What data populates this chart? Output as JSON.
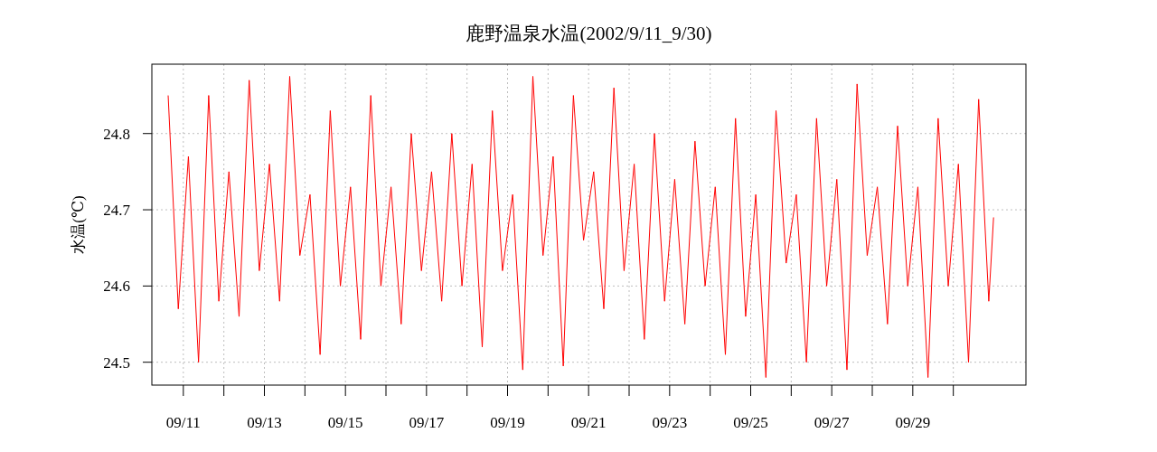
{
  "chart_data": {
    "type": "line",
    "title": "鹿野温泉水温(2002/9/11_9/30)",
    "ylabel": "水温(℃)",
    "color": "#ff0000",
    "grid": true,
    "xlim": [
      "2002-09-10T05:21",
      "2002-10-01T19:00"
    ],
    "ylim": [
      24.47,
      24.891
    ],
    "yticks": [
      24.5,
      24.6,
      24.7,
      24.8
    ],
    "xticks": [
      {
        "value": "2002-09-11",
        "label": "09/11"
      },
      {
        "value": "2002-09-12",
        "label": null
      },
      {
        "value": "2002-09-13",
        "label": "09/13"
      },
      {
        "value": "2002-09-14",
        "label": null
      },
      {
        "value": "2002-09-15",
        "label": "09/15"
      },
      {
        "value": "2002-09-16",
        "label": null
      },
      {
        "value": "2002-09-17",
        "label": "09/17"
      },
      {
        "value": "2002-09-18",
        "label": null
      },
      {
        "value": "2002-09-19",
        "label": "09/19"
      },
      {
        "value": "2002-09-20",
        "label": null
      },
      {
        "value": "2002-09-21",
        "label": "09/21"
      },
      {
        "value": "2002-09-22",
        "label": null
      },
      {
        "value": "2002-09-23",
        "label": "09/23"
      },
      {
        "value": "2002-09-24",
        "label": null
      },
      {
        "value": "2002-09-25",
        "label": "09/25"
      },
      {
        "value": "2002-09-26",
        "label": null
      },
      {
        "value": "2002-09-27",
        "label": "09/27"
      },
      {
        "value": "2002-09-28",
        "label": null
      },
      {
        "value": "2002-09-29",
        "label": "09/29"
      },
      {
        "value": "2002-09-30",
        "label": null
      }
    ],
    "x": [
      "2002-09-10T15:00",
      "2002-09-10T21:00",
      "2002-09-11T03:00",
      "2002-09-11T09:00",
      "2002-09-11T15:00",
      "2002-09-11T21:00",
      "2002-09-12T03:00",
      "2002-09-12T09:00",
      "2002-09-12T15:00",
      "2002-09-12T21:00",
      "2002-09-13T03:00",
      "2002-09-13T09:00",
      "2002-09-13T15:00",
      "2002-09-13T21:00",
      "2002-09-14T03:00",
      "2002-09-14T09:00",
      "2002-09-14T15:00",
      "2002-09-14T21:00",
      "2002-09-15T03:00",
      "2002-09-15T09:00",
      "2002-09-15T15:00",
      "2002-09-15T21:00",
      "2002-09-16T03:00",
      "2002-09-16T09:00",
      "2002-09-16T15:00",
      "2002-09-16T21:00",
      "2002-09-17T03:00",
      "2002-09-17T09:00",
      "2002-09-17T15:00",
      "2002-09-17T21:00",
      "2002-09-18T03:00",
      "2002-09-18T09:00",
      "2002-09-18T15:00",
      "2002-09-18T21:00",
      "2002-09-19T03:00",
      "2002-09-19T09:00",
      "2002-09-19T15:00",
      "2002-09-19T21:00",
      "2002-09-20T03:00",
      "2002-09-20T09:00",
      "2002-09-20T15:00",
      "2002-09-20T21:00",
      "2002-09-21T03:00",
      "2002-09-21T09:00",
      "2002-09-21T15:00",
      "2002-09-21T21:00",
      "2002-09-22T03:00",
      "2002-09-22T09:00",
      "2002-09-22T15:00",
      "2002-09-22T21:00",
      "2002-09-23T03:00",
      "2002-09-23T09:00",
      "2002-09-23T15:00",
      "2002-09-23T21:00",
      "2002-09-24T03:00",
      "2002-09-24T09:00",
      "2002-09-24T15:00",
      "2002-09-24T21:00",
      "2002-09-25T03:00",
      "2002-09-25T09:00",
      "2002-09-25T15:00",
      "2002-09-25T21:00",
      "2002-09-26T03:00",
      "2002-09-26T09:00",
      "2002-09-26T15:00",
      "2002-09-26T21:00",
      "2002-09-27T03:00",
      "2002-09-27T09:00",
      "2002-09-27T15:00",
      "2002-09-27T21:00",
      "2002-09-28T03:00",
      "2002-09-28T09:00",
      "2002-09-28T15:00",
      "2002-09-28T21:00",
      "2002-09-29T03:00",
      "2002-09-29T09:00",
      "2002-09-29T15:00",
      "2002-09-29T21:00",
      "2002-09-30T03:00",
      "2002-09-30T09:00",
      "2002-09-30T15:00",
      "2002-09-30T21:00",
      "2002-09-30T23:50"
    ],
    "values": [
      24.85,
      24.57,
      24.77,
      24.5,
      24.85,
      24.58,
      24.75,
      24.56,
      24.87,
      24.62,
      24.76,
      24.58,
      24.875,
      24.64,
      24.72,
      24.51,
      24.83,
      24.6,
      24.73,
      24.53,
      24.85,
      24.6,
      24.73,
      24.55,
      24.8,
      24.62,
      24.75,
      24.58,
      24.8,
      24.6,
      24.76,
      24.52,
      24.83,
      24.62,
      24.72,
      24.49,
      24.875,
      24.64,
      24.77,
      24.495,
      24.85,
      24.66,
      24.75,
      24.57,
      24.86,
      24.62,
      24.76,
      24.53,
      24.8,
      24.58,
      24.74,
      24.55,
      24.79,
      24.6,
      24.73,
      24.51,
      24.82,
      24.56,
      24.72,
      24.48,
      24.83,
      24.63,
      24.72,
      24.5,
      24.82,
      24.6,
      24.74,
      24.49,
      24.865,
      24.64,
      24.73,
      24.55,
      24.81,
      24.6,
      24.73,
      24.48,
      24.82,
      24.6,
      24.76,
      24.5,
      24.845,
      24.58,
      24.69
    ]
  }
}
